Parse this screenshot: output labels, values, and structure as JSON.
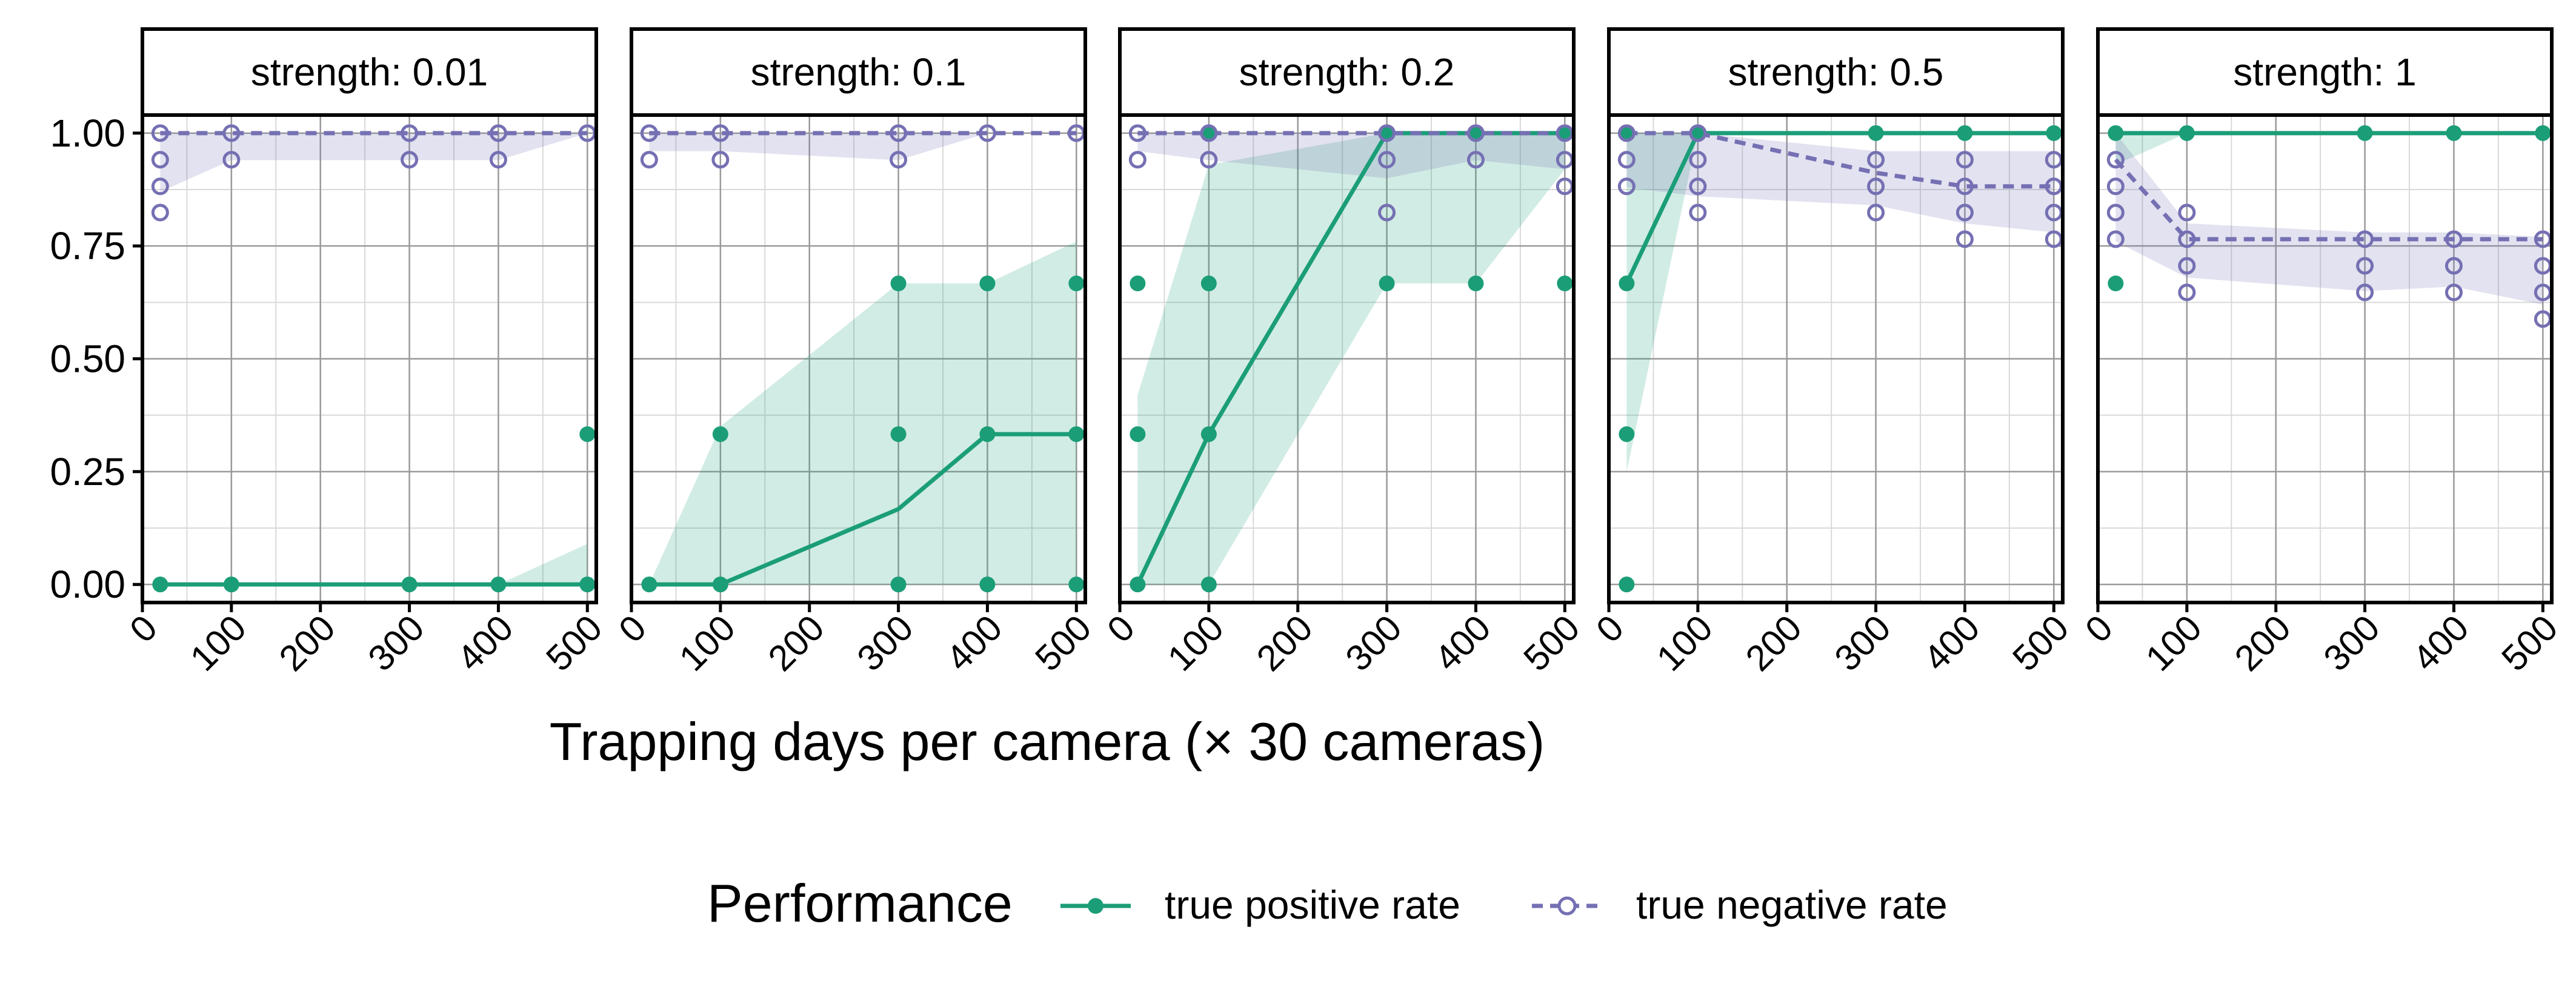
{
  "chart_data": {
    "type": "line",
    "facet_label": "strength",
    "xlabel": "Trapping days per camera (× 30 cameras)",
    "ylabel": "",
    "xlim": [
      0,
      510
    ],
    "ylim": [
      -0.04,
      1.04
    ],
    "x_ticks": [
      0,
      100,
      200,
      300,
      400,
      500
    ],
    "y_ticks": [
      "0.00",
      "0.25",
      "0.50",
      "0.75",
      "1.00"
    ],
    "y_tick_values": [
      0,
      0.25,
      0.5,
      0.75,
      1
    ],
    "grid": true,
    "legend": {
      "position": "bottom",
      "title": "Performance",
      "entries": [
        "true positive rate",
        "true negative rate"
      ]
    },
    "colors": {
      "tpr": "#1b9e77",
      "tnr": "#7570b3"
    },
    "x": [
      20,
      100,
      300,
      400,
      500
    ],
    "panels": [
      {
        "strength": "0.01",
        "tpr": {
          "line": [
            0,
            0,
            0,
            0,
            0
          ],
          "lower": [
            0,
            0,
            0,
            0,
            0
          ],
          "upper": [
            0,
            0,
            0,
            0,
            0.09
          ],
          "points": [
            [
              20,
              0
            ],
            [
              100,
              0
            ],
            [
              300,
              0
            ],
            [
              400,
              0
            ],
            [
              500,
              0
            ],
            [
              500,
              0.333
            ]
          ]
        },
        "tnr": {
          "line": [
            1,
            1,
            1,
            1,
            1
          ],
          "lower": [
            0.87,
            0.94,
            0.94,
            0.94,
            1
          ],
          "upper": [
            1,
            1,
            1,
            1,
            1
          ],
          "points": [
            [
              20,
              1
            ],
            [
              20,
              0.941
            ],
            [
              20,
              0.882
            ],
            [
              20,
              0.824
            ],
            [
              100,
              1
            ],
            [
              100,
              0.941
            ],
            [
              300,
              1
            ],
            [
              300,
              0.941
            ],
            [
              400,
              1
            ],
            [
              400,
              0.941
            ],
            [
              500,
              1
            ]
          ]
        }
      },
      {
        "strength": "0.1",
        "tpr": {
          "line": [
            0,
            0,
            0.167,
            0.333,
            0.333
          ],
          "lower": [
            0,
            0,
            0,
            0,
            0
          ],
          "upper": [
            0,
            0.35,
            0.667,
            0.667,
            0.76
          ],
          "points": [
            [
              20,
              0
            ],
            [
              100,
              0
            ],
            [
              100,
              0.333
            ],
            [
              300,
              0
            ],
            [
              300,
              0.333
            ],
            [
              300,
              0.667
            ],
            [
              400,
              0
            ],
            [
              400,
              0.333
            ],
            [
              400,
              0.667
            ],
            [
              500,
              0
            ],
            [
              500,
              0.333
            ],
            [
              500,
              0.667
            ]
          ]
        },
        "tnr": {
          "line": [
            1,
            1,
            1,
            1,
            1
          ],
          "lower": [
            0.96,
            0.96,
            0.94,
            1,
            1
          ],
          "upper": [
            1,
            1,
            1,
            1,
            1
          ],
          "points": [
            [
              20,
              1
            ],
            [
              20,
              0.941
            ],
            [
              100,
              1
            ],
            [
              100,
              0.941
            ],
            [
              300,
              1
            ],
            [
              300,
              0.941
            ],
            [
              400,
              1
            ],
            [
              500,
              1
            ]
          ]
        }
      },
      {
        "strength": "0.2",
        "tpr": {
          "line": [
            0,
            0.333,
            1,
            1,
            1
          ],
          "lower": [
            0,
            0,
            0.667,
            0.667,
            0.92
          ],
          "upper": [
            0.42,
            0.93,
            1,
            1,
            1
          ],
          "points": [
            [
              20,
              0
            ],
            [
              20,
              0.333
            ],
            [
              20,
              0.667
            ],
            [
              100,
              0
            ],
            [
              100,
              0.333
            ],
            [
              100,
              0.667
            ],
            [
              100,
              1
            ],
            [
              300,
              0.667
            ],
            [
              300,
              1
            ],
            [
              400,
              0.667
            ],
            [
              400,
              1
            ],
            [
              500,
              0.667
            ],
            [
              500,
              1
            ]
          ]
        },
        "tnr": {
          "line": [
            1,
            1,
            1,
            1,
            1
          ],
          "lower": [
            0.96,
            0.94,
            0.9,
            0.94,
            0.92
          ],
          "upper": [
            1,
            1,
            1,
            1,
            1
          ],
          "points": [
            [
              20,
              1
            ],
            [
              20,
              0.941
            ],
            [
              100,
              1
            ],
            [
              100,
              0.941
            ],
            [
              300,
              1
            ],
            [
              300,
              0.941
            ],
            [
              300,
              0.824
            ],
            [
              400,
              1
            ],
            [
              400,
              0.941
            ],
            [
              500,
              1
            ],
            [
              500,
              0.941
            ],
            [
              500,
              0.882
            ]
          ]
        }
      },
      {
        "strength": "0.5",
        "tpr": {
          "line": [
            0.667,
            1,
            1,
            1,
            1
          ],
          "lower": [
            0.25,
            1,
            1,
            1,
            1
          ],
          "upper": [
            1,
            1,
            1,
            1,
            1
          ],
          "points": [
            [
              20,
              0
            ],
            [
              20,
              0.333
            ],
            [
              20,
              0.667
            ],
            [
              20,
              1
            ],
            [
              100,
              1
            ],
            [
              300,
              1
            ],
            [
              400,
              1
            ],
            [
              500,
              1
            ]
          ]
        },
        "tnr": {
          "line": [
            1,
            1,
            0.912,
            0.882,
            0.882
          ],
          "lower": [
            0.88,
            0.86,
            0.84,
            0.8,
            0.78
          ],
          "upper": [
            1,
            1,
            0.96,
            0.96,
            0.96
          ],
          "points": [
            [
              20,
              1
            ],
            [
              20,
              0.941
            ],
            [
              20,
              0.882
            ],
            [
              100,
              1
            ],
            [
              100,
              0.941
            ],
            [
              100,
              0.882
            ],
            [
              100,
              0.824
            ],
            [
              300,
              0.941
            ],
            [
              300,
              0.882
            ],
            [
              300,
              0.824
            ],
            [
              400,
              0.941
            ],
            [
              400,
              0.882
            ],
            [
              400,
              0.824
            ],
            [
              400,
              0.765
            ],
            [
              500,
              0.941
            ],
            [
              500,
              0.882
            ],
            [
              500,
              0.824
            ],
            [
              500,
              0.765
            ]
          ]
        }
      },
      {
        "strength": "1",
        "tpr": {
          "line": [
            1,
            1,
            1,
            1,
            1
          ],
          "lower": [
            0.93,
            1,
            1,
            1,
            1
          ],
          "upper": [
            1,
            1,
            1,
            1,
            1
          ],
          "points": [
            [
              20,
              1
            ],
            [
              20,
              0.667
            ],
            [
              100,
              1
            ],
            [
              300,
              1
            ],
            [
              400,
              1
            ],
            [
              500,
              1
            ]
          ]
        },
        "tnr": {
          "line": [
            0.941,
            0.765,
            0.765,
            0.765,
            0.765
          ],
          "lower": [
            0.76,
            0.68,
            0.65,
            0.66,
            0.62
          ],
          "upper": [
            1,
            0.8,
            0.78,
            0.78,
            0.77
          ],
          "points": [
            [
              20,
              0.941
            ],
            [
              20,
              0.882
            ],
            [
              20,
              0.824
            ],
            [
              20,
              0.765
            ],
            [
              100,
              0.824
            ],
            [
              100,
              0.765
            ],
            [
              100,
              0.706
            ],
            [
              100,
              0.647
            ],
            [
              300,
              0.765
            ],
            [
              300,
              0.706
            ],
            [
              300,
              0.647
            ],
            [
              400,
              0.765
            ],
            [
              400,
              0.706
            ],
            [
              400,
              0.647
            ],
            [
              500,
              0.765
            ],
            [
              500,
              0.706
            ],
            [
              500,
              0.647
            ],
            [
              500,
              0.588
            ]
          ]
        }
      }
    ]
  }
}
